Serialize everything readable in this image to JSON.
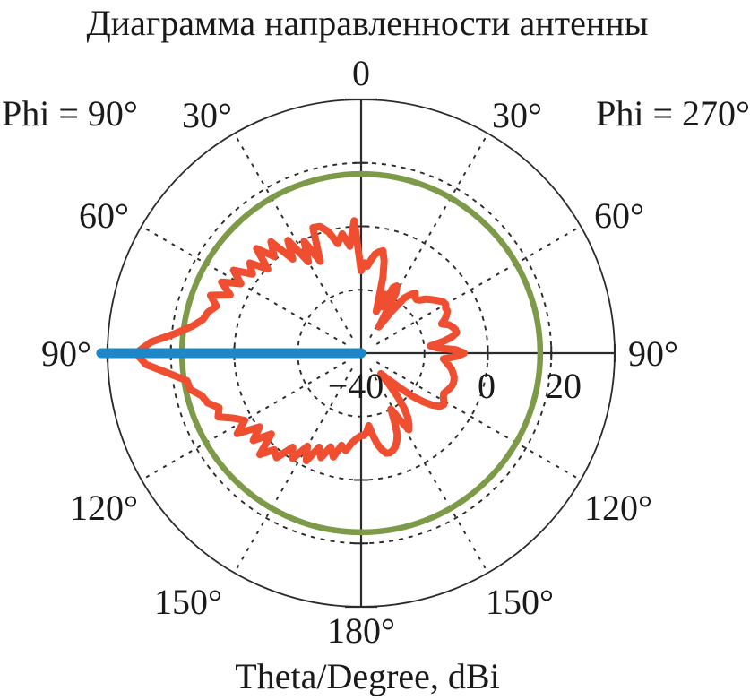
{
  "title": "Диаграмма направленности антенны",
  "footer_label": "Theta/Degree, dBi",
  "plane_labels": {
    "left": "Phi = 90°",
    "right": "Phi = 270°"
  },
  "colors": {
    "pattern": "#EF4E30",
    "reference_circle": "#7C9A47",
    "beam_marker": "#1E87C8",
    "grid": "#2b2b2b",
    "text": "#1a1a1a"
  },
  "chart_data": {
    "type": "line",
    "subtype": "polar",
    "units": "dBi",
    "angle_units": "Theta/Degree",
    "angle_convention": "0 at top; right half is Phi=270 plane, left half is Phi=90 plane; plot angle measured clockwise from top",
    "radial_axis": {
      "min": -40,
      "max": 40,
      "grid_levels": [
        -20,
        0,
        20
      ],
      "tick_labels": [
        {
          "value": -40,
          "label": "−40"
        },
        {
          "value": 0,
          "label": "0"
        },
        {
          "value": 20,
          "label": "20"
        }
      ]
    },
    "angle_labels": [
      {
        "plot_angle": 0,
        "label": "0"
      },
      {
        "plot_angle": 30,
        "label": "30°"
      },
      {
        "plot_angle": 60,
        "label": "60°"
      },
      {
        "plot_angle": 90,
        "label": "90°"
      },
      {
        "plot_angle": 120,
        "label": "120°"
      },
      {
        "plot_angle": 150,
        "label": "150°"
      },
      {
        "plot_angle": 180,
        "label": "180°"
      },
      {
        "plot_angle": 210,
        "label": "150°"
      },
      {
        "plot_angle": 240,
        "label": "120°"
      },
      {
        "plot_angle": 270,
        "label": "90°"
      },
      {
        "plot_angle": 300,
        "label": "60°"
      },
      {
        "plot_angle": 330,
        "label": "30°"
      }
    ],
    "reference_circle_dbi": 16.5,
    "beam_marker": {
      "plot_angle": 270,
      "from_dbi": -40,
      "to_dbi": 42
    },
    "series": [
      {
        "name": "radiation-pattern",
        "points": [
          [
            0,
            -14
          ],
          [
            2,
            -11.5
          ],
          [
            4,
            -12.5
          ],
          [
            6,
            -10.5
          ],
          [
            8,
            -8.5
          ],
          [
            10,
            -7.6
          ],
          [
            12,
            -7.0
          ],
          [
            14,
            -10
          ],
          [
            16,
            -15
          ],
          [
            18,
            -22
          ],
          [
            20,
            -26
          ],
          [
            22,
            -20
          ],
          [
            24,
            -24
          ],
          [
            26,
            -17
          ],
          [
            28,
            -16
          ],
          [
            30,
            -18
          ],
          [
            32,
            -26
          ],
          [
            34,
            -30
          ],
          [
            36,
            -24
          ],
          [
            38,
            -18
          ],
          [
            40,
            -16
          ],
          [
            42,
            -14.5
          ],
          [
            44,
            -15.5
          ],
          [
            46,
            -15.7
          ],
          [
            48,
            -15
          ],
          [
            50,
            -13.5
          ],
          [
            52,
            -12.5
          ],
          [
            54,
            -11.5
          ],
          [
            56,
            -10.5
          ],
          [
            58,
            -9.5
          ],
          [
            60,
            -9.2
          ],
          [
            62,
            -9.8
          ],
          [
            64,
            -9.7
          ],
          [
            66,
            -10.5
          ],
          [
            68,
            -11.5
          ],
          [
            70,
            -13
          ],
          [
            72,
            -11
          ],
          [
            74,
            -10
          ],
          [
            76,
            -9.3
          ],
          [
            78,
            -9.2
          ],
          [
            80,
            -11
          ],
          [
            82,
            -14
          ],
          [
            84,
            -18
          ],
          [
            86,
            -16
          ],
          [
            88,
            -10
          ],
          [
            90,
            -7.5
          ],
          [
            92,
            -10
          ],
          [
            94,
            -14
          ],
          [
            96,
            -13
          ],
          [
            98,
            -12
          ],
          [
            100,
            -11
          ],
          [
            102,
            -10.4
          ],
          [
            104,
            -9.8
          ],
          [
            106,
            -9.5
          ],
          [
            108,
            -9.4
          ],
          [
            110,
            -9.6
          ],
          [
            112,
            -10
          ],
          [
            114,
            -10.5
          ],
          [
            116,
            -11
          ],
          [
            118,
            -10.6
          ],
          [
            120,
            -9.9
          ],
          [
            122,
            -9.3
          ],
          [
            124,
            -10
          ],
          [
            126,
            -12
          ],
          [
            128,
            -15
          ],
          [
            130,
            -19
          ],
          [
            132,
            -24
          ],
          [
            134,
            -28
          ],
          [
            136,
            -31
          ],
          [
            138,
            -27
          ],
          [
            140,
            -22
          ],
          [
            142,
            -18
          ],
          [
            144,
            -15
          ],
          [
            146,
            -13
          ],
          [
            148,
            -11.5
          ],
          [
            150,
            -16
          ],
          [
            152,
            -20
          ],
          [
            154,
            -16
          ],
          [
            156,
            -12
          ],
          [
            158,
            -10
          ],
          [
            160,
            -8.5
          ],
          [
            162,
            -7.7
          ],
          [
            164,
            -7.3
          ],
          [
            166,
            -7.5
          ],
          [
            168,
            -9
          ],
          [
            170,
            -11
          ],
          [
            172,
            -14
          ],
          [
            174,
            -17
          ],
          [
            176,
            -15
          ],
          [
            178,
            -14
          ],
          [
            180,
            -14
          ],
          [
            183,
            -13
          ],
          [
            186,
            -11.5
          ],
          [
            189,
            -8.9
          ],
          [
            192,
            -10.3
          ],
          [
            195,
            -6.1
          ],
          [
            198,
            -8.9
          ],
          [
            201,
            -4.7
          ],
          [
            204,
            -7.5
          ],
          [
            207,
            -1.9
          ],
          [
            210,
            -6.1
          ],
          [
            213,
            -0.4
          ],
          [
            216,
            -3.3
          ],
          [
            219,
            2.4
          ],
          [
            222,
            1.0
          ],
          [
            225,
            5.2
          ],
          [
            228,
            -1.9
          ],
          [
            231,
            3.8
          ],
          [
            234,
            -0.4
          ],
          [
            237,
            6.6
          ],
          [
            240,
            2.4
          ],
          [
            243,
            5.2
          ],
          [
            246,
            9.4
          ],
          [
            249,
            8.0
          ],
          [
            252,
            10.9
          ],
          [
            255,
            12
          ],
          [
            258,
            15.1
          ],
          [
            261,
            15.6
          ],
          [
            264,
            21
          ],
          [
            267,
            28
          ],
          [
            270,
            31
          ],
          [
            273,
            26.4
          ],
          [
            276,
            19
          ],
          [
            279,
            14
          ],
          [
            282,
            11
          ],
          [
            285,
            10
          ],
          [
            288,
            8.0
          ],
          [
            291,
            10.9
          ],
          [
            294,
            5.2
          ],
          [
            297,
            9.4
          ],
          [
            300,
            3.8
          ],
          [
            303,
            8.0
          ],
          [
            306,
            2.4
          ],
          [
            309,
            5.2
          ],
          [
            312,
            -0.4
          ],
          [
            315,
            6.6
          ],
          [
            318,
            1.0
          ],
          [
            321,
            5.2
          ],
          [
            324,
            -3.3
          ],
          [
            327,
            2.4
          ],
          [
            330,
            -6.7
          ],
          [
            333,
            -0.4
          ],
          [
            336,
            -8.3
          ],
          [
            339,
            2.4
          ],
          [
            342,
            2.0
          ],
          [
            345,
            -0.4
          ],
          [
            348,
            -4.7
          ],
          [
            351,
            -1.9
          ],
          [
            354,
            -6.1
          ],
          [
            357,
            1.8
          ],
          [
            360,
            -14
          ]
        ]
      }
    ]
  }
}
